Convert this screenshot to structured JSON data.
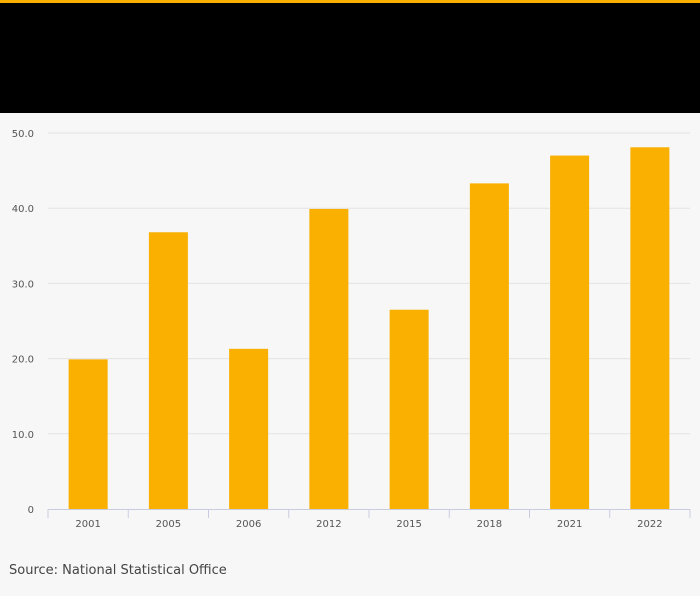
{
  "colors": {
    "accent": "#f9b000",
    "header_bg": "#000000",
    "background": "#f7f7f7"
  },
  "chart_data": {
    "type": "bar",
    "categories": [
      "2001",
      "2005",
      "2006",
      "2012",
      "2015",
      "2018",
      "2021",
      "2022"
    ],
    "values": [
      19.9,
      36.8,
      21.3,
      39.9,
      26.5,
      43.3,
      47.0,
      48.1
    ],
    "ylim": [
      0,
      50
    ],
    "yticks": [
      "0",
      "10.0",
      "20.0",
      "30.0",
      "40.0",
      "50.0"
    ],
    "grid": true,
    "bar_color": "#f9b000"
  },
  "footer": {
    "source": "Source: National Statistical Office"
  }
}
